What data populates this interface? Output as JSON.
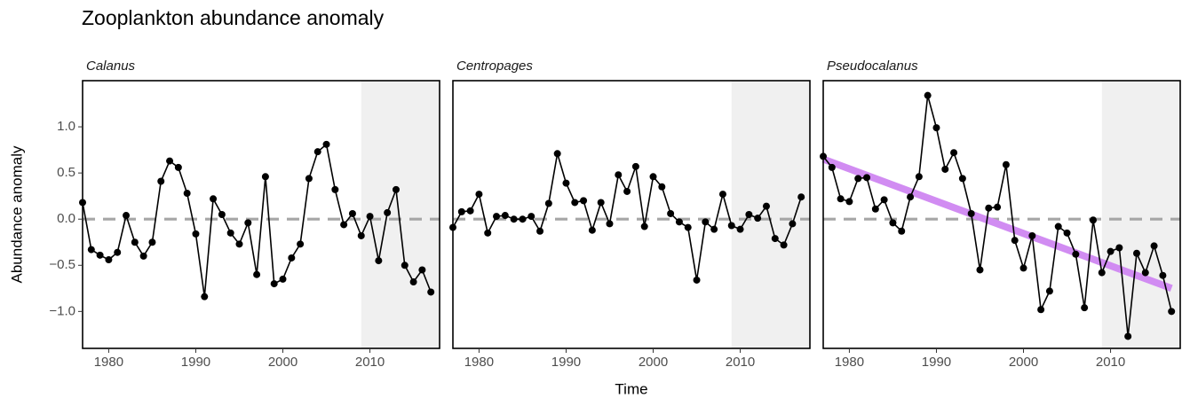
{
  "title": "Zooplankton abundance anomaly",
  "x_label": "Time",
  "y_label": "Abundance anomaly",
  "chart_data": [
    {
      "type": "line",
      "subtitle": "Calanus",
      "x": [
        1977,
        1978,
        1979,
        1980,
        1981,
        1982,
        1983,
        1984,
        1985,
        1986,
        1987,
        1988,
        1989,
        1990,
        1991,
        1992,
        1993,
        1994,
        1995,
        1996,
        1997,
        1998,
        1999,
        2000,
        2001,
        2002,
        2003,
        2004,
        2005,
        2006,
        2007,
        2008,
        2009,
        2010,
        2011,
        2012,
        2013,
        2014,
        2015,
        2016,
        2017
      ],
      "series": [
        {
          "color": "#000000",
          "values": [
            0.18,
            -0.33,
            -0.39,
            -0.44,
            -0.36,
            0.04,
            -0.25,
            -0.4,
            -0.25,
            0.41,
            0.63,
            0.56,
            0.28,
            -0.16,
            -0.84,
            0.22,
            0.05,
            -0.15,
            -0.27,
            -0.04,
            -0.6,
            0.46,
            -0.7,
            -0.65,
            -0.42,
            -0.27,
            0.44,
            0.73,
            0.81,
            0.32,
            -0.06,
            0.06,
            -0.18,
            0.03,
            -0.45,
            0.07,
            0.32,
            -0.5,
            -0.68,
            -0.55,
            -0.79
          ]
        }
      ],
      "xlim": [
        1977,
        2018
      ],
      "ylim": [
        -1.4,
        1.5
      ],
      "xticks": [
        1980,
        1990,
        2000,
        2010
      ],
      "yticks": [
        {
          "value": -1,
          "label": "−1.0"
        },
        {
          "value": -0.5,
          "label": "−0.5"
        },
        {
          "value": 0,
          "label": "0.0"
        },
        {
          "value": 0.5,
          "label": "0.5"
        },
        {
          "value": 1,
          "label": "1.0"
        }
      ],
      "hline": 0,
      "shade_from": 2009
    },
    {
      "type": "line",
      "subtitle": "Centropages",
      "x": [
        1977,
        1978,
        1979,
        1980,
        1981,
        1982,
        1983,
        1984,
        1985,
        1986,
        1987,
        1988,
        1989,
        1990,
        1991,
        1992,
        1993,
        1994,
        1995,
        1996,
        1997,
        1998,
        1999,
        2000,
        2001,
        2002,
        2003,
        2004,
        2005,
        2006,
        2007,
        2008,
        2009,
        2010,
        2011,
        2012,
        2013,
        2014,
        2015,
        2016,
        2017
      ],
      "series": [
        {
          "color": "#000000",
          "values": [
            -0.09,
            0.08,
            0.09,
            0.27,
            -0.15,
            0.03,
            0.04,
            0,
            0,
            0.03,
            -0.13,
            0.17,
            0.71,
            0.39,
            0.18,
            0.2,
            -0.12,
            0.18,
            -0.05,
            0.48,
            0.3,
            0.57,
            -0.08,
            0.46,
            0.35,
            0.06,
            -0.03,
            -0.09,
            -0.66,
            -0.03,
            -0.11,
            0.27,
            -0.07,
            -0.11,
            0.05,
            0.01,
            0.14,
            -0.21,
            -0.28,
            -0.05,
            0.24
          ]
        }
      ],
      "xlim": [
        1977,
        2018
      ],
      "ylim": [
        -1.4,
        1.5
      ],
      "xticks": [
        1980,
        1990,
        2000,
        2010
      ],
      "hline": 0,
      "shade_from": 2009
    },
    {
      "type": "line",
      "subtitle": "Pseudocalanus",
      "x": [
        1977,
        1978,
        1979,
        1980,
        1981,
        1982,
        1983,
        1984,
        1985,
        1986,
        1987,
        1988,
        1989,
        1990,
        1991,
        1992,
        1993,
        1994,
        1995,
        1996,
        1997,
        1998,
        1999,
        2000,
        2001,
        2002,
        2003,
        2004,
        2005,
        2006,
        2007,
        2008,
        2009,
        2010,
        2011,
        2012,
        2013,
        2014,
        2015,
        2016,
        2017
      ],
      "series": [
        {
          "color": "#000000",
          "values": [
            0.68,
            0.56,
            0.22,
            0.19,
            0.44,
            0.45,
            0.11,
            0.21,
            -0.04,
            -0.13,
            0.24,
            0.46,
            1.34,
            0.99,
            0.54,
            0.72,
            0.44,
            0.06,
            -0.55,
            0.12,
            0.13,
            0.59,
            -0.23,
            -0.53,
            -0.18,
            -0.98,
            -0.78,
            -0.08,
            -0.15,
            -0.38,
            -0.96,
            -0.01,
            -0.58,
            -0.35,
            -0.31,
            -1.27,
            -0.37,
            -0.58,
            -0.29,
            -0.61,
            -1.0
          ]
        }
      ],
      "xlim": [
        1977,
        2018
      ],
      "ylim": [
        -1.4,
        1.5
      ],
      "xticks": [
        1980,
        1990,
        2000,
        2010
      ],
      "hline": 0,
      "shade_from": 2009,
      "trend": {
        "x": [
          1977,
          2017
        ],
        "values": [
          0.65,
          -0.75
        ],
        "color": "#d18cf2"
      }
    }
  ]
}
